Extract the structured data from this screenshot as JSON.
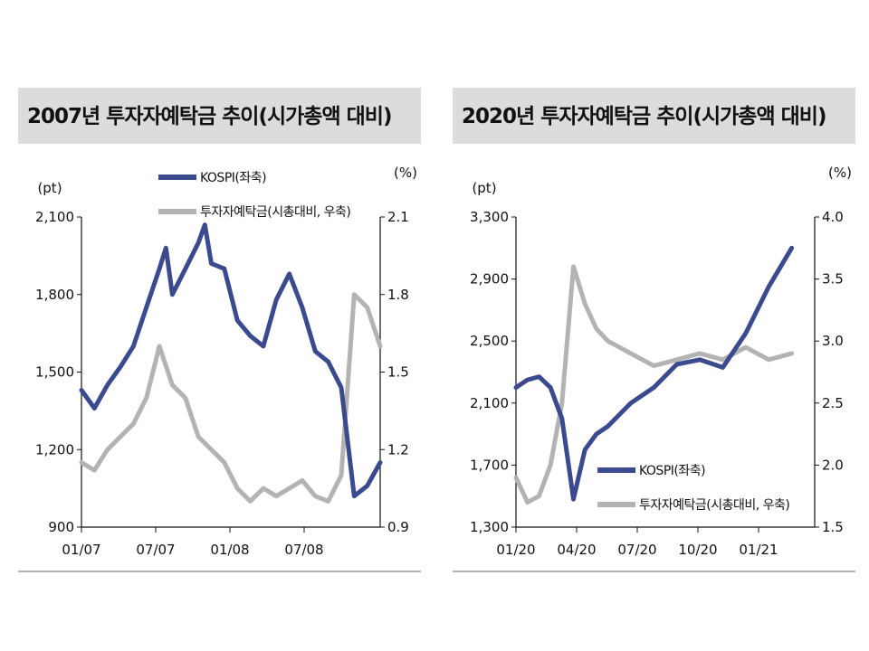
{
  "chart_data": [
    {
      "type": "line",
      "title": "2007년 투자자예탁금 추이(시가총액 대비)",
      "y_left_unit": "(pt)",
      "y_right_unit": "(%)",
      "x_tick_labels": [
        "01/07",
        "07/07",
        "01/08",
        "07/08"
      ],
      "y_left_ticks": [
        "2,100",
        "1,800",
        "1,500",
        "1,200",
        "900"
      ],
      "y_right_ticks": [
        "2.1",
        "1.8",
        "1.5",
        "1.2",
        "0.9"
      ],
      "ylim_left": [
        900,
        2100
      ],
      "ylim_right": [
        0.9,
        2.1
      ],
      "legend_position": "top-center",
      "grid": false,
      "series": [
        {
          "name": "KOSPI(좌축)",
          "axis": "left",
          "color": "#3b4a8f",
          "x": [
            "2007-01",
            "2007-02",
            "2007-03",
            "2007-04",
            "2007-05",
            "2007-06",
            "2007-07",
            "2007-07",
            "2007-08",
            "2007-09",
            "2007-10",
            "2007-10",
            "2007-11",
            "2007-12",
            "2008-01",
            "2008-02",
            "2008-03",
            "2008-04",
            "2008-05",
            "2008-06",
            "2008-07",
            "2008-08",
            "2008-09",
            "2008-10",
            "2008-11",
            "2008-12"
          ],
          "values": [
            1430,
            1360,
            1450,
            1520,
            1600,
            1750,
            1900,
            1980,
            1800,
            1900,
            2000,
            2070,
            1920,
            1900,
            1700,
            1640,
            1600,
            1780,
            1880,
            1750,
            1580,
            1540,
            1440,
            1020,
            1060,
            1150
          ]
        },
        {
          "name": "투자자예탁금(시총대비, 우축)",
          "axis": "right",
          "color": "#b3b3b3",
          "x": [
            "2007-01",
            "2007-02",
            "2007-03",
            "2007-04",
            "2007-05",
            "2007-06",
            "2007-07",
            "2007-08",
            "2007-09",
            "2007-10",
            "2007-11",
            "2007-12",
            "2008-01",
            "2008-02",
            "2008-03",
            "2008-04",
            "2008-05",
            "2008-06",
            "2008-07",
            "2008-08",
            "2008-09",
            "2008-10",
            "2008-11",
            "2008-12"
          ],
          "values": [
            1.15,
            1.12,
            1.2,
            1.25,
            1.3,
            1.4,
            1.6,
            1.45,
            1.4,
            1.25,
            1.2,
            1.15,
            1.05,
            1.0,
            1.05,
            1.02,
            1.05,
            1.08,
            1.02,
            1.0,
            1.1,
            1.8,
            1.75,
            1.6
          ]
        }
      ]
    },
    {
      "type": "line",
      "title": "2020년 투자자예탁금 추이(시가총액 대비)",
      "y_left_unit": "(pt)",
      "y_right_unit": "(%)",
      "x_tick_labels": [
        "01/20",
        "04/20",
        "07/20",
        "10/20",
        "01/21"
      ],
      "y_left_ticks": [
        "3,300",
        "2,900",
        "2,500",
        "2,100",
        "1,700",
        "1,300"
      ],
      "y_right_ticks": [
        "4.0",
        "3.5",
        "3.0",
        "2.5",
        "2.0",
        "1.5"
      ],
      "ylim_left": [
        1300,
        3300
      ],
      "ylim_right": [
        1.5,
        4.0
      ],
      "legend_position": "bottom-right",
      "grid": false,
      "series": [
        {
          "name": "KOSPI(좌축)",
          "axis": "left",
          "color": "#3b4a8f",
          "x": [
            "2020-01",
            "2020-01",
            "2020-02",
            "2020-02",
            "2020-03",
            "2020-03",
            "2020-04",
            "2020-04",
            "2020-05",
            "2020-06",
            "2020-07",
            "2020-08",
            "2020-09",
            "2020-10",
            "2020-11",
            "2020-12",
            "2021-01"
          ],
          "values": [
            2200,
            2250,
            2270,
            2200,
            2000,
            1480,
            1800,
            1900,
            1950,
            2100,
            2200,
            2350,
            2380,
            2330,
            2550,
            2850,
            3100
          ]
        },
        {
          "name": "투자자예탁금(시총대비, 우축)",
          "axis": "right",
          "color": "#b3b3b3",
          "x": [
            "2020-01",
            "2020-01",
            "2020-02",
            "2020-02",
            "2020-03",
            "2020-03",
            "2020-04",
            "2020-04",
            "2020-05",
            "2020-06",
            "2020-07",
            "2020-08",
            "2020-09",
            "2020-10",
            "2020-11",
            "2020-12",
            "2021-01"
          ],
          "values": [
            1.9,
            1.7,
            1.75,
            2.0,
            2.5,
            3.6,
            3.3,
            3.1,
            3.0,
            2.9,
            2.8,
            2.85,
            2.9,
            2.85,
            2.95,
            2.85,
            2.9
          ]
        }
      ]
    }
  ]
}
